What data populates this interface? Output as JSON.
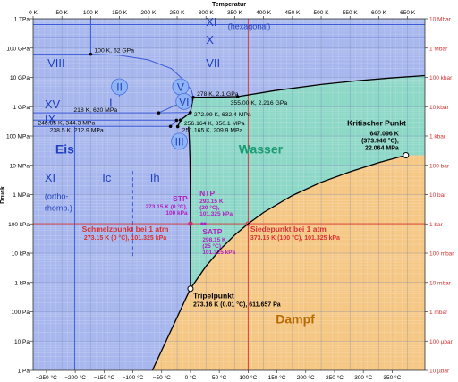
{
  "chart_data": {
    "type": "phase-diagram",
    "top_axis_label": "Temperatur",
    "left_axis_label": "Druck",
    "xlim_K": [
      0,
      680
    ],
    "ylim_log10_Pa": [
      0,
      12
    ],
    "top_ticks": [
      "0 K",
      "50 K",
      "100 K",
      "150 K",
      "200 K",
      "250 K",
      "300 K",
      "350 K",
      "400 K",
      "450 K",
      "500 K",
      "550 K",
      "600 K",
      "650 K"
    ],
    "top_tick_values_K": [
      0,
      50,
      100,
      150,
      200,
      250,
      300,
      350,
      400,
      450,
      500,
      550,
      600,
      650
    ],
    "bottom_ticks": [
      "−250 °C",
      "−200 °C",
      "−150 °C",
      "−100 °C",
      "−50 °C",
      "0 °C",
      "50 °C",
      "100 °C",
      "150 °C",
      "200 °C",
      "250 °C",
      "300 °C",
      "350 °C"
    ],
    "bottom_tick_values_K": [
      23.15,
      73.15,
      123.15,
      173.15,
      223.15,
      273.15,
      323.15,
      373.15,
      423.15,
      473.15,
      523.15,
      573.15,
      623.15
    ],
    "left_ticks": [
      "1 Pa",
      "10 Pa",
      "100 Pa",
      "1 kPa",
      "10 kPa",
      "100 kPa",
      "1 MPa",
      "10 MPa",
      "100 MPa",
      "1 GPa",
      "10 GPa",
      "100 GPa",
      "1 TPa"
    ],
    "left_tick_values_log10_Pa": [
      0,
      1,
      2,
      3,
      4,
      5,
      6,
      7,
      8,
      9,
      10,
      11,
      12
    ],
    "right_ticks": [
      "10 µbar",
      "100 µbar",
      "1 mbar",
      "10 mbar",
      "100 mbar",
      "1 bar",
      "10 bar",
      "100 bar",
      "1 kbar",
      "10 kbar",
      "100 kbar",
      "1 Mbar",
      "10 Mbar"
    ],
    "right_tick_values_log10_Pa": [
      0,
      1,
      2,
      3,
      4,
      5,
      6,
      7,
      8,
      9,
      10,
      11,
      12
    ],
    "colors": {
      "ice": "#a8b8ee",
      "water": "#8ed8c8",
      "vapor": "#f6c886",
      "boundary": "#000000",
      "ice_phase_line": "#3c5ad8",
      "reference_line": "#d83030",
      "std_condition": "#b020c0",
      "ice_text": "#1f3fbf"
    },
    "regions": [
      {
        "key": "eis",
        "label": "Eis",
        "T": 55,
        "logP": 7.4
      },
      {
        "key": "wasser",
        "label": "Wasser",
        "T": 395,
        "logP": 7.4
      },
      {
        "key": "dampf",
        "label": "Dampf",
        "T": 455,
        "logP": 1.6
      }
    ],
    "ice_phases": [
      {
        "label": "XI",
        "T": 300,
        "logP": 11.75
      },
      {
        "label": "(hexagonal)",
        "T": 375,
        "logP": 11.65
      },
      {
        "label": "X",
        "T": 300,
        "logP": 11.15
      },
      {
        "label": "VIII",
        "T": 25,
        "logP": 10.35
      },
      {
        "label": "VII",
        "T": 300,
        "logP": 10.35
      },
      {
        "label": "XV",
        "T": 20,
        "logP": 8.95
      },
      {
        "label": "IX",
        "T": 20,
        "logP": 8.45
      },
      {
        "label": "XI",
        "T": 20,
        "logP": 6.45
      },
      {
        "label": "(ortho-",
        "T": 20,
        "logP": 5.85
      },
      {
        "label": "rhomb.)",
        "T": 20,
        "logP": 5.45
      },
      {
        "label": "Ic",
        "T": 120,
        "logP": 6.45
      },
      {
        "label": "Ih",
        "T": 203,
        "logP": 6.45
      },
      {
        "label": "I",
        "T": 132,
        "logP": 9.0
      }
    ],
    "circled_phases": [
      {
        "label": "II",
        "T": 150,
        "logP": 9.68
      },
      {
        "label": "V",
        "T": 256,
        "logP": 9.68
      },
      {
        "label": "VI",
        "T": 262,
        "logP": 9.18
      },
      {
        "label": "III",
        "T": 254,
        "logP": 7.82
      }
    ],
    "boundary_lines": [
      {
        "name": "ice-vapor",
        "T": [
          200,
          273.16
        ],
        "logP": [
          -0.3,
          2.787
        ]
      },
      {
        "name": "ice-water",
        "T": [
          273.16,
          273.16,
          273.1,
          272.8,
          272.3,
          271.6,
          270.8,
          270
        ],
        "logP": [
          2.787,
          4.2,
          5.0,
          6.3,
          7.2,
          7.7,
          8.05,
          8.32
        ]
      },
      {
        "name": "water-vapor",
        "T": [
          273.16,
          300,
          325,
          350,
          373.15,
          400,
          450,
          500,
          550,
          600,
          647.096
        ],
        "logP": [
          2.787,
          3.55,
          4.13,
          4.62,
          5.006,
          5.39,
          5.97,
          6.42,
          6.78,
          7.09,
          7.344
        ]
      },
      {
        "name": "ice-VII-melting",
        "T": [
          355,
          420,
          500,
          560,
          620,
          680
        ],
        "logP": [
          9.343,
          9.55,
          9.76,
          9.88,
          9.98,
          10.06
        ]
      }
    ],
    "triple_points": [
      {
        "label": "100 K, 62 GPa",
        "T": 100,
        "logP": 10.79
      },
      {
        "label": "278 K, 2.1 GPa",
        "T": 278,
        "logP": 9.32
      },
      {
        "label": "355.00 K, 2.216 GPa",
        "T": 355,
        "logP": 9.343
      },
      {
        "label": "218 K, 620 MPa",
        "T": 218,
        "logP": 8.79
      },
      {
        "label": "272.99 K, 632.4 MPa",
        "T": 273,
        "logP": 8.8
      },
      {
        "label": "248.85 K, 344.3 MPa",
        "T": 249,
        "logP": 8.537
      },
      {
        "label": "256.164 K, 350.1 MPa",
        "T": 256,
        "logP": 8.544
      },
      {
        "label": "238.5 K, 212.9 MPa",
        "T": 238.5,
        "logP": 8.328
      },
      {
        "label": "251.165 K, 209.9 MPa",
        "T": 251,
        "logP": 8.322
      }
    ],
    "special_points": {
      "critical": {
        "title": "Kritischer Punkt",
        "line1": "647.096 K",
        "line2": "(373.946 °C),",
        "line3": "22.064 MPa",
        "T": 647.096,
        "logP": 7.344
      },
      "triple": {
        "title": "Tripelpunkt",
        "line1": "273.16 K (0.01 °C), 611.657 Pa",
        "T": 273.16,
        "logP": 2.787
      },
      "melting": {
        "title": "Schmelzpunkt bei 1 atm",
        "line1": "273.15 K (0 °C), 101.325 kPa",
        "T": 273.15,
        "logP": 5.006
      },
      "boiling": {
        "title": "Siedepunkt bei 1 atm",
        "line1": "373.15 K (100 °C), 101.325 kPa",
        "T": 373.15,
        "logP": 5.006
      }
    },
    "std_conditions": {
      "stp": {
        "title": "STP",
        "line1": "273.15 K (0 °C),",
        "line2": "100 kPa"
      },
      "ntp": {
        "title": "NTP",
        "line1": "293.15 K",
        "line2": "(20 °C),",
        "line3": "101.325 kPa"
      },
      "satp": {
        "title": "SATP",
        "line1": "298.15 K",
        "line2": "(25 °C),",
        "line3": "101.325 kPa"
      }
    }
  }
}
